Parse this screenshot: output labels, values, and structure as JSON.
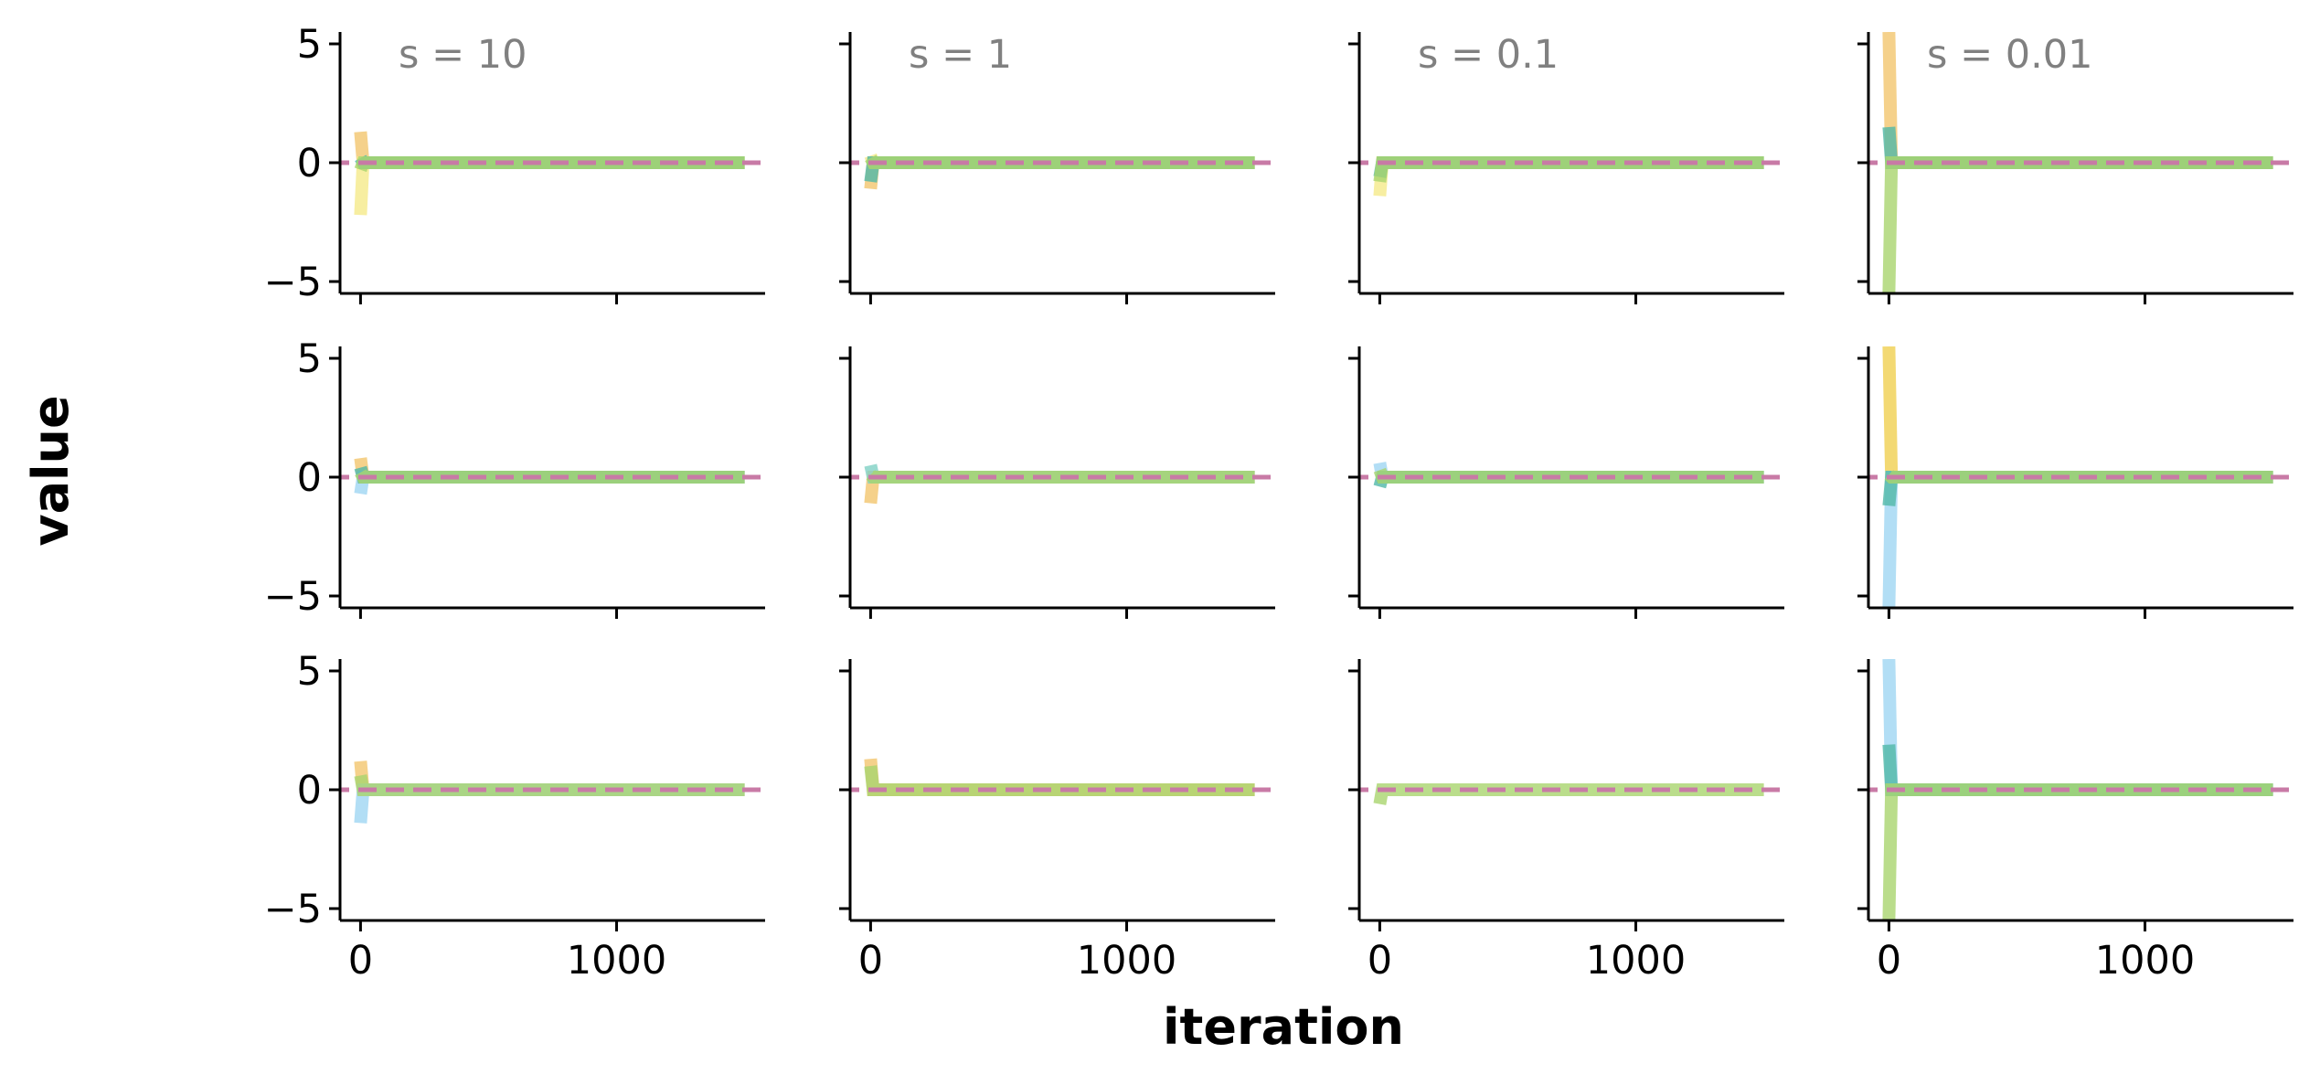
{
  "figure": {
    "xlabel": "iteration",
    "ylabel": "value",
    "x_ticks": [
      0,
      1000
    ],
    "y_ticks": [
      5,
      0,
      -5
    ],
    "xlim": [
      -80,
      1580
    ],
    "ylim": [
      -5.5,
      5.5
    ]
  },
  "colors": {
    "reference_line": "#c87aa6",
    "series": [
      "#f2c66e",
      "#f5ea8a",
      "#9fd6f2",
      "#50b8a8",
      "#a9d46e",
      "#f0d050",
      "#7fd1c4"
    ]
  },
  "chart_data": [
    {
      "type": "line",
      "row": 0,
      "col": 0,
      "title": "s = 10",
      "xlim": [
        -80,
        1580
      ],
      "ylim": [
        -5.5,
        5.5
      ],
      "reference_y": 0,
      "series": [
        {
          "color": "#f2c66e",
          "x": [
            0,
            10,
            1500
          ],
          "y": [
            1.3,
            0,
            0
          ]
        },
        {
          "color": "#f5ea8a",
          "x": [
            0,
            10,
            1500
          ],
          "y": [
            -2.2,
            0,
            0
          ]
        },
        {
          "color": "#50b8a8",
          "x": [
            0,
            10,
            1500
          ],
          "y": [
            0.2,
            0,
            0
          ]
        },
        {
          "color": "#a9d46e",
          "x": [
            0,
            10,
            1500
          ],
          "y": [
            -0.3,
            0,
            0
          ]
        }
      ]
    },
    {
      "type": "line",
      "row": 0,
      "col": 1,
      "title": "s = 1",
      "xlim": [
        -80,
        1580
      ],
      "ylim": [
        -5.5,
        5.5
      ],
      "reference_y": 0,
      "series": [
        {
          "color": "#f2c66e",
          "x": [
            0,
            10,
            1500
          ],
          "y": [
            -1.1,
            0,
            0
          ]
        },
        {
          "color": "#f5ea8a",
          "x": [
            0,
            10,
            1500
          ],
          "y": [
            0.3,
            0,
            0
          ]
        },
        {
          "color": "#50b8a8",
          "x": [
            0,
            10,
            1500
          ],
          "y": [
            -0.8,
            0,
            0
          ]
        },
        {
          "color": "#a9d46e",
          "x": [
            0,
            10,
            1500
          ],
          "y": [
            0.2,
            0,
            0
          ]
        }
      ]
    },
    {
      "type": "line",
      "row": 0,
      "col": 2,
      "title": "s = 0.1",
      "xlim": [
        -80,
        1580
      ],
      "ylim": [
        -5.5,
        5.5
      ],
      "reference_y": 0,
      "series": [
        {
          "color": "#f5ea8a",
          "x": [
            0,
            10,
            1500
          ],
          "y": [
            -1.4,
            0,
            0
          ]
        },
        {
          "color": "#50b8a8",
          "x": [
            0,
            10,
            1500
          ],
          "y": [
            -0.6,
            0,
            0
          ]
        },
        {
          "color": "#a9d46e",
          "x": [
            0,
            10,
            1500
          ],
          "y": [
            -0.8,
            0,
            0
          ]
        }
      ]
    },
    {
      "type": "line",
      "row": 0,
      "col": 3,
      "title": "s = 0.01",
      "xlim": [
        -80,
        1580
      ],
      "ylim": [
        -5.5,
        5.5
      ],
      "reference_y": 0,
      "series": [
        {
          "color": "#f2c66e",
          "x": [
            0,
            10,
            1500
          ],
          "y": [
            5.5,
            0,
            0
          ]
        },
        {
          "color": "#50b8a8",
          "x": [
            0,
            10,
            1500
          ],
          "y": [
            1.5,
            0,
            0
          ]
        },
        {
          "color": "#a9d46e",
          "x": [
            0,
            10,
            1500
          ],
          "y": [
            -5.5,
            0,
            0
          ]
        }
      ]
    },
    {
      "type": "line",
      "row": 1,
      "col": 0,
      "title": "",
      "xlim": [
        -80,
        1580
      ],
      "ylim": [
        -5.5,
        5.5
      ],
      "reference_y": 0,
      "series": [
        {
          "color": "#f2c66e",
          "x": [
            0,
            10,
            1500
          ],
          "y": [
            0.8,
            0,
            0
          ]
        },
        {
          "color": "#9fd6f2",
          "x": [
            0,
            10,
            1500
          ],
          "y": [
            -0.7,
            0,
            0
          ]
        },
        {
          "color": "#50b8a8",
          "x": [
            0,
            10,
            1500
          ],
          "y": [
            0.4,
            0,
            0
          ]
        },
        {
          "color": "#a9d46e",
          "x": [
            0,
            10,
            1500
          ],
          "y": [
            0.2,
            0,
            0
          ]
        }
      ]
    },
    {
      "type": "line",
      "row": 1,
      "col": 1,
      "title": "",
      "xlim": [
        -80,
        1580
      ],
      "ylim": [
        -5.5,
        5.5
      ],
      "reference_y": 0,
      "series": [
        {
          "color": "#f2c66e",
          "x": [
            0,
            10,
            1500
          ],
          "y": [
            -1.1,
            0,
            0
          ]
        },
        {
          "color": "#7fd1c4",
          "x": [
            0,
            10,
            1500
          ],
          "y": [
            0.5,
            0,
            0
          ]
        },
        {
          "color": "#a9d46e",
          "x": [
            0,
            10,
            1500
          ],
          "y": [
            0.1,
            0,
            0
          ]
        }
      ]
    },
    {
      "type": "line",
      "row": 1,
      "col": 2,
      "title": "",
      "xlim": [
        -80,
        1580
      ],
      "ylim": [
        -5.5,
        5.5
      ],
      "reference_y": 0,
      "series": [
        {
          "color": "#9fd6f2",
          "x": [
            0,
            10,
            1500
          ],
          "y": [
            0.6,
            0,
            0
          ]
        },
        {
          "color": "#50b8a8",
          "x": [
            0,
            10,
            1500
          ],
          "y": [
            -0.4,
            0,
            0
          ]
        },
        {
          "color": "#a9d46e",
          "x": [
            0,
            10,
            1500
          ],
          "y": [
            0.3,
            0,
            0
          ]
        }
      ]
    },
    {
      "type": "line",
      "row": 1,
      "col": 3,
      "title": "",
      "xlim": [
        -80,
        1580
      ],
      "ylim": [
        -5.5,
        5.5
      ],
      "reference_y": 0,
      "series": [
        {
          "color": "#f0d050",
          "x": [
            0,
            10,
            1500
          ],
          "y": [
            5.5,
            0,
            0
          ]
        },
        {
          "color": "#9fd6f2",
          "x": [
            0,
            10,
            1500
          ],
          "y": [
            -5.5,
            0,
            0
          ]
        },
        {
          "color": "#50b8a8",
          "x": [
            0,
            10,
            1500
          ],
          "y": [
            -1.2,
            0,
            0
          ]
        },
        {
          "color": "#a9d46e",
          "x": [
            0,
            10,
            1500
          ],
          "y": [
            0.1,
            0,
            0
          ]
        }
      ]
    },
    {
      "type": "line",
      "row": 2,
      "col": 0,
      "title": "",
      "xlim": [
        -80,
        1580
      ],
      "ylim": [
        -5.5,
        5.5
      ],
      "reference_y": 0,
      "series": [
        {
          "color": "#f2c66e",
          "x": [
            0,
            10,
            1500
          ],
          "y": [
            1.2,
            0,
            0
          ]
        },
        {
          "color": "#9fd6f2",
          "x": [
            0,
            10,
            1500
          ],
          "y": [
            -1.4,
            0,
            0
          ]
        },
        {
          "color": "#a9d46e",
          "x": [
            0,
            10,
            1500
          ],
          "y": [
            0.6,
            0,
            0
          ]
        }
      ]
    },
    {
      "type": "line",
      "row": 2,
      "col": 1,
      "title": "",
      "xlim": [
        -80,
        1580
      ],
      "ylim": [
        -5.5,
        5.5
      ],
      "reference_y": 0,
      "series": [
        {
          "color": "#f2c66e",
          "x": [
            0,
            10,
            1500
          ],
          "y": [
            1.3,
            0,
            0
          ]
        },
        {
          "color": "#a9d46e",
          "x": [
            0,
            10,
            1500
          ],
          "y": [
            1.0,
            0,
            0
          ]
        }
      ]
    },
    {
      "type": "line",
      "row": 2,
      "col": 2,
      "title": "",
      "xlim": [
        -80,
        1580
      ],
      "ylim": [
        -5.5,
        5.5
      ],
      "reference_y": 0,
      "series": [
        {
          "color": "#a9d46e",
          "x": [
            0,
            10,
            1500
          ],
          "y": [
            -0.6,
            0,
            0
          ]
        }
      ]
    },
    {
      "type": "line",
      "row": 2,
      "col": 3,
      "title": "",
      "xlim": [
        -80,
        1580
      ],
      "ylim": [
        -5.5,
        5.5
      ],
      "reference_y": 0,
      "series": [
        {
          "color": "#9fd6f2",
          "x": [
            0,
            10,
            1500
          ],
          "y": [
            5.5,
            0,
            0
          ]
        },
        {
          "color": "#50b8a8",
          "x": [
            0,
            10,
            1500
          ],
          "y": [
            1.9,
            0,
            0
          ]
        },
        {
          "color": "#a9d46e",
          "x": [
            0,
            10,
            1500
          ],
          "y": [
            -5.5,
            0,
            0
          ]
        }
      ]
    }
  ]
}
